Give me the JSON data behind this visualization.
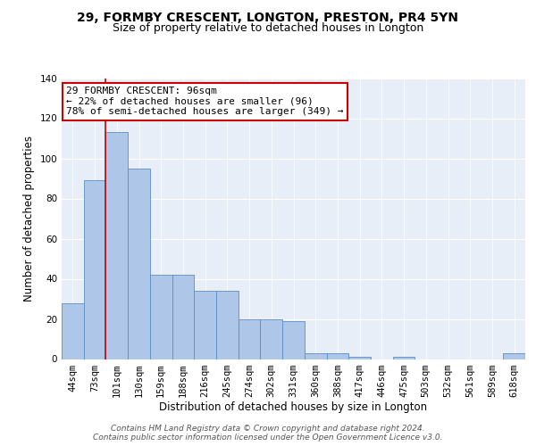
{
  "title1": "29, FORMBY CRESCENT, LONGTON, PRESTON, PR4 5YN",
  "title2": "Size of property relative to detached houses in Longton",
  "xlabel": "Distribution of detached houses by size in Longton",
  "ylabel": "Number of detached properties",
  "bar_labels": [
    "44sqm",
    "73sqm",
    "101sqm",
    "130sqm",
    "159sqm",
    "188sqm",
    "216sqm",
    "245sqm",
    "274sqm",
    "302sqm",
    "331sqm",
    "360sqm",
    "388sqm",
    "417sqm",
    "446sqm",
    "475sqm",
    "503sqm",
    "532sqm",
    "561sqm",
    "589sqm",
    "618sqm"
  ],
  "bar_values": [
    28,
    89,
    113,
    95,
    42,
    42,
    34,
    34,
    20,
    20,
    19,
    3,
    3,
    1,
    0,
    1,
    0,
    0,
    0,
    0,
    3
  ],
  "bar_color": "#aec6e8",
  "bar_edge_color": "#5a8fc2",
  "background_color": "#e8eef7",
  "grid_color": "#ffffff",
  "annotation_line1": "29 FORMBY CRESCENT: 96sqm",
  "annotation_line2": "← 22% of detached houses are smaller (96)",
  "annotation_line3": "78% of semi-detached houses are larger (349) →",
  "annotation_box_color": "#ffffff",
  "annotation_box_edge_color": "#cc0000",
  "vline_x": 1.5,
  "vline_color": "#cc0000",
  "ylim": [
    0,
    140
  ],
  "yticks": [
    0,
    20,
    40,
    60,
    80,
    100,
    120,
    140
  ],
  "footer_text": "Contains HM Land Registry data © Crown copyright and database right 2024.\nContains public sector information licensed under the Open Government Licence v3.0.",
  "title1_fontsize": 10,
  "title2_fontsize": 9,
  "xlabel_fontsize": 8.5,
  "ylabel_fontsize": 8.5,
  "tick_fontsize": 7.5,
  "annotation_fontsize": 8,
  "footer_fontsize": 6.5
}
